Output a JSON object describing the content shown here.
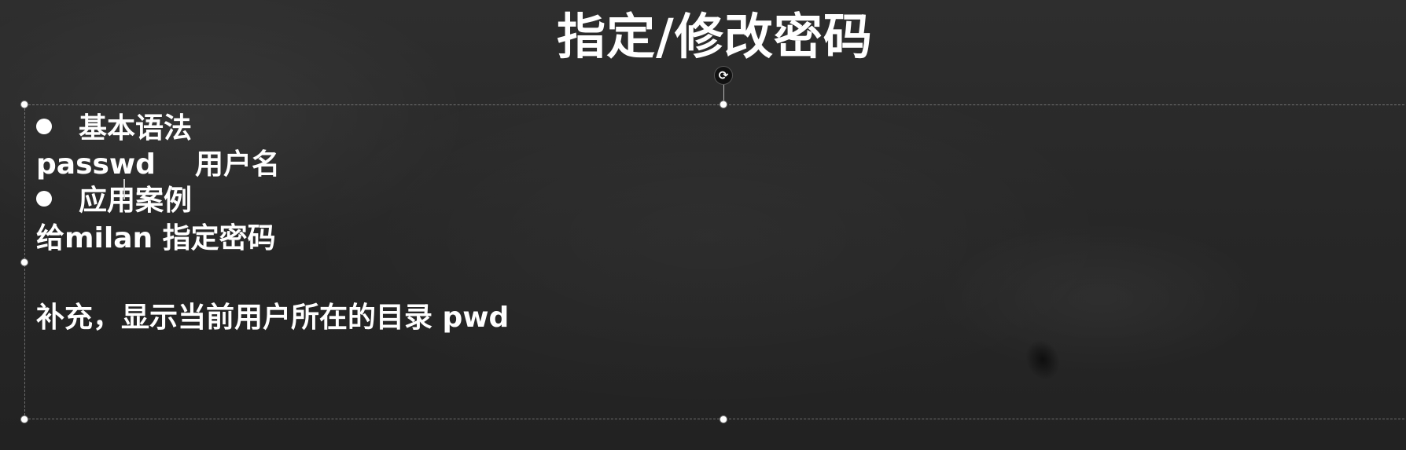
{
  "slide": {
    "title": "指定/修改密码",
    "bullets": [
      {
        "label": "基本语法"
      },
      {
        "label": "应用案例"
      }
    ],
    "syntax": {
      "command": "passwd",
      "argument": "用户名"
    },
    "example": "给milan 指定密码",
    "supplement": "补充，显示当前用户所在的目录 pwd"
  },
  "icons": {
    "rotate": "rotate-icon"
  }
}
